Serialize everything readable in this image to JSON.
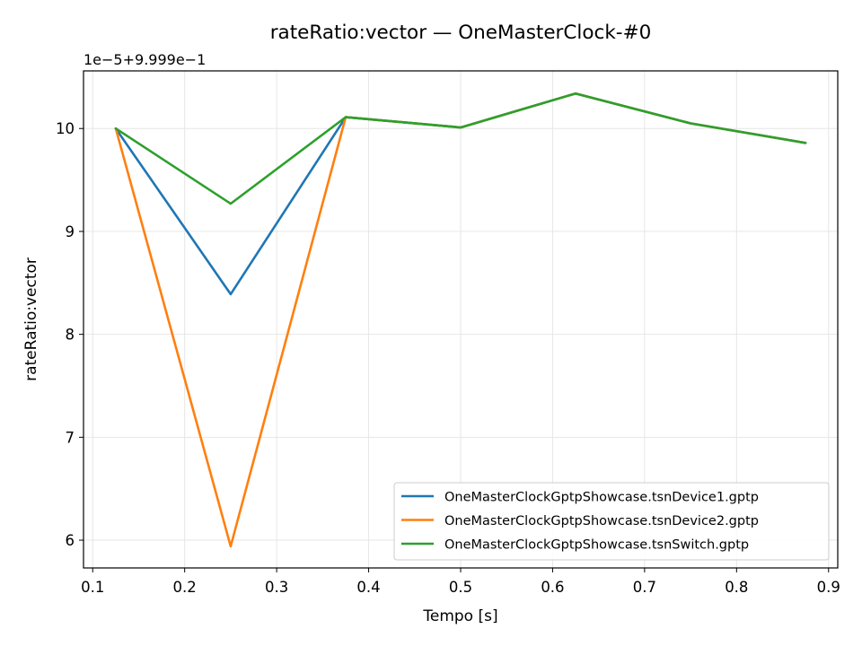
{
  "chart_data": {
    "type": "line",
    "title": "rateRatio:vector — OneMasterClock-#0",
    "xlabel": "Tempo [s]",
    "ylabel": "rateRatio:vector",
    "offset_label": "1e−5+9.999e−1",
    "xlim": [
      0.09,
      0.91
    ],
    "ylim": [
      5.73,
      10.56
    ],
    "x_ticks": [
      0.1,
      0.2,
      0.3,
      0.4,
      0.5,
      0.6,
      0.7,
      0.8,
      0.9
    ],
    "x_tick_labels": [
      "0.1",
      "0.2",
      "0.3",
      "0.4",
      "0.5",
      "0.6",
      "0.7",
      "0.8",
      "0.9"
    ],
    "y_ticks": [
      6,
      7,
      8,
      9,
      10
    ],
    "y_tick_labels": [
      "6",
      "7",
      "8",
      "9",
      "10"
    ],
    "grid": true,
    "legend_position": "lower-right",
    "x": [
      0.125,
      0.25,
      0.375,
      0.5,
      0.625,
      0.75,
      0.875
    ],
    "series": [
      {
        "name": "OneMasterClockGptpShowcase.tsnDevice1.gptp",
        "color": "#1f77b4",
        "values": [
          10.0,
          8.39,
          10.11,
          10.01,
          10.34,
          10.05,
          9.86
        ]
      },
      {
        "name": "OneMasterClockGptpShowcase.tsnDevice2.gptp",
        "color": "#ff7f0e",
        "values": [
          10.0,
          5.94,
          10.11,
          10.01,
          10.34,
          10.05,
          9.86
        ]
      },
      {
        "name": "OneMasterClockGptpShowcase.tsnSwitch.gptp",
        "color": "#2ca02c",
        "values": [
          10.0,
          9.27,
          10.11,
          10.01,
          10.34,
          10.05,
          9.86
        ]
      }
    ]
  }
}
